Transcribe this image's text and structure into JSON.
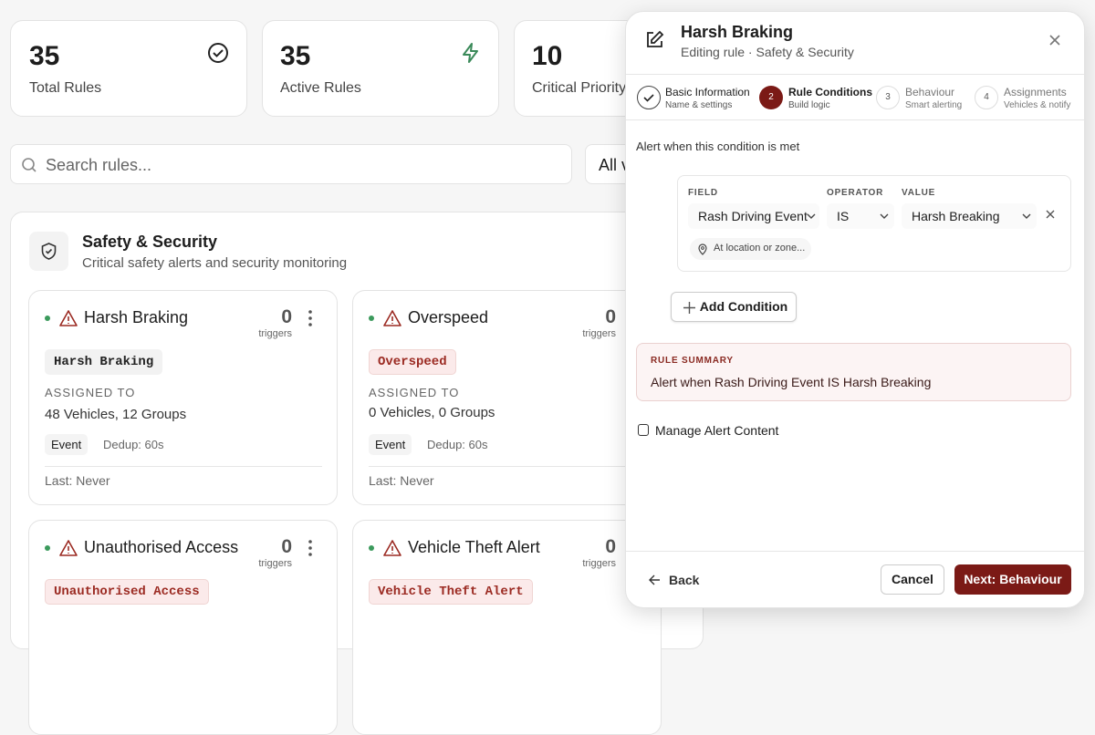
{
  "stats": [
    {
      "value": 35,
      "label": "Total Rules"
    },
    {
      "value": 35,
      "label": "Active Rules"
    },
    {
      "value": 10,
      "label": "Critical Priority"
    }
  ],
  "search": {
    "placeholder": "Search rules...",
    "filter": "All v"
  },
  "section": {
    "title": "Safety & Security",
    "subtitle": "Critical safety alerts and security monitoring"
  },
  "rules": [
    {
      "name": "Harsh Braking",
      "count": 0,
      "count_label": "triggers",
      "tag": "Harsh Braking",
      "assigned_label": "ASSIGNED TO",
      "assigned": "48 Vehicles, 12 Groups",
      "type": "Event",
      "dedup": "Dedup: 60s",
      "last": "Last: Never"
    },
    {
      "name": "Overspeed",
      "count": 0,
      "count_label": "triggers",
      "tag": "Overspeed",
      "assigned_label": "ASSIGNED TO",
      "assigned": "0 Vehicles, 0 Groups",
      "type": "Event",
      "dedup": "Dedup: 60s",
      "last": "Last: Never"
    },
    {
      "name": "Unauthorised Access",
      "count": 0,
      "count_label": "triggers",
      "tag": "Unauthorised Access"
    },
    {
      "name": "Vehicle Theft Alert",
      "count": 0,
      "count_label": "triggers",
      "tag": "Vehicle Theft Alert"
    }
  ],
  "panel": {
    "title": "Harsh Braking",
    "subtitle": "Editing rule · Safety & Security",
    "steps": [
      {
        "title": "Basic Information",
        "subtitle": "Name & settings"
      },
      {
        "number": 2,
        "title": "Rule Conditions",
        "subtitle": "Build logic"
      },
      {
        "number": 3,
        "title": "Behaviour",
        "subtitle": "Smart alerting"
      },
      {
        "number": 4,
        "title": "Assignments",
        "subtitle": "Vehicles & notify"
      }
    ],
    "prompt": "Alert when this condition is met",
    "condition": {
      "field_label": "FIELD",
      "field": "Rash Driving Event",
      "operator_label": "OPERATOR",
      "operator": "IS",
      "value_label": "VALUE",
      "value": "Harsh Breaking",
      "location": "At location or zone..."
    },
    "add_condition": "Add Condition",
    "summary": {
      "label": "RULE SUMMARY",
      "text": "Alert when Rash Driving Event IS Harsh Breaking"
    },
    "manage": "Manage Alert Content",
    "back": "Back",
    "cancel": "Cancel",
    "next": "Next: Behaviour"
  }
}
